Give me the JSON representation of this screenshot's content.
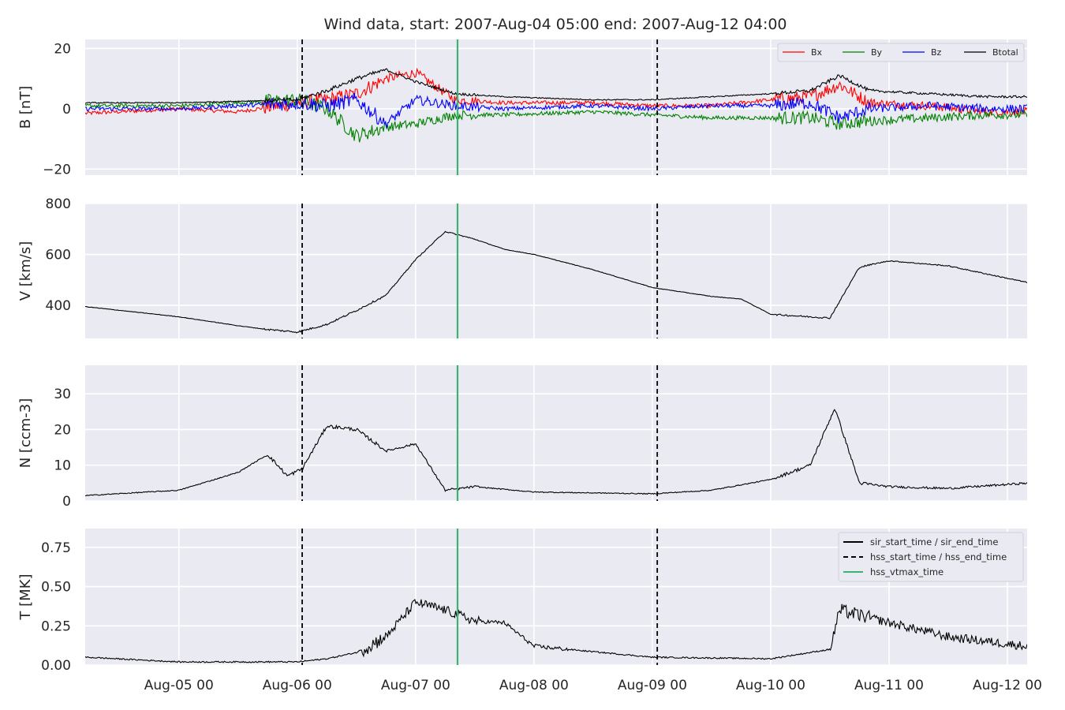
{
  "title": "Wind data, start: 2007-Aug-04 05:00  end: 2007-Aug-12 04:00",
  "colors": {
    "background": "#eaeaf2",
    "grid": "#ffffff",
    "bx": "#ff0000",
    "by": "#008000",
    "bz": "#0000ff",
    "btotal": "#000000",
    "vtmax": "#3cb371"
  },
  "x_tick_labels": [
    "Aug-05 00",
    "Aug-06 00",
    "Aug-07 00",
    "Aug-08 00",
    "Aug-09 00",
    "Aug-10 00",
    "Aug-11 00",
    "Aug-12 00"
  ],
  "markers": {
    "hss_start_time": "2007-08-06 01:00",
    "hss_end_time": "2007-08-09 01:00",
    "hss_vtmax_time": "2007-08-07 08:30"
  },
  "legend_lines": {
    "sir": "sir_start_time / sir_end_time",
    "hss": "hss_start_time / hss_end_time",
    "vtmax": "hss_vtmax_time"
  },
  "chart_data": [
    {
      "type": "line",
      "ylabel": "B [nT]",
      "ylim": [
        -22,
        23
      ],
      "yticks": [
        -20,
        0,
        20
      ],
      "ytick_labels": [
        "−20",
        "0",
        "20"
      ],
      "grid": true,
      "legend": "top-right",
      "x": [
        "2007-08-04 05:00",
        "2007-08-05 00:00",
        "2007-08-05 12:00",
        "2007-08-06 00:00",
        "2007-08-06 06:00",
        "2007-08-06 12:00",
        "2007-08-06 18:00",
        "2007-08-07 00:00",
        "2007-08-07 08:00",
        "2007-08-07 18:00",
        "2007-08-08 12:00",
        "2007-08-09 00:00",
        "2007-08-09 12:00",
        "2007-08-10 00:00",
        "2007-08-10 08:00",
        "2007-08-10 14:00",
        "2007-08-10 20:00",
        "2007-08-11 08:00",
        "2007-08-11 20:00",
        "2007-08-12 04:00"
      ],
      "series": [
        {
          "name": "Bx",
          "color": "#ff0000",
          "values": [
            -1.5,
            0,
            -1,
            2,
            3,
            5,
            10,
            12,
            3,
            2,
            2,
            1,
            1,
            3,
            4,
            8,
            2,
            1,
            -1,
            -1
          ]
        },
        {
          "name": "By",
          "color": "#008000",
          "values": [
            1,
            1,
            2,
            3,
            0,
            -9,
            -6,
            -5,
            -2,
            -2,
            -1,
            -2,
            -3,
            -3,
            -3,
            -5,
            -4,
            -3,
            -2,
            -2
          ]
        },
        {
          "name": "Bz",
          "color": "#0000ff",
          "values": [
            0,
            0,
            1,
            2,
            1,
            3,
            -5,
            3,
            1,
            0,
            1,
            0,
            1,
            1,
            2,
            -3,
            0,
            1,
            0,
            0
          ]
        },
        {
          "name": "Btotal",
          "color": "#000000",
          "values": [
            2,
            2,
            2.5,
            3,
            6,
            10,
            13,
            9,
            5,
            4,
            3,
            3,
            4,
            5,
            6,
            11,
            6,
            5,
            4,
            4
          ]
        }
      ]
    },
    {
      "type": "line",
      "ylabel": "V [km/s]",
      "ylim": [
        270,
        800
      ],
      "yticks": [
        400,
        600,
        800
      ],
      "ytick_labels": [
        "400",
        "600",
        "800"
      ],
      "grid": true,
      "x": [
        "2007-08-04 05:00",
        "2007-08-05 00:00",
        "2007-08-05 12:00",
        "2007-08-05 18:00",
        "2007-08-06 00:00",
        "2007-08-06 06:00",
        "2007-08-06 12:00",
        "2007-08-06 18:00",
        "2007-08-07 00:00",
        "2007-08-07 06:00",
        "2007-08-07 12:00",
        "2007-08-07 18:00",
        "2007-08-08 00:00",
        "2007-08-08 12:00",
        "2007-08-09 00:00",
        "2007-08-09 12:00",
        "2007-08-09 18:00",
        "2007-08-10 00:00",
        "2007-08-10 12:00",
        "2007-08-10 18:00",
        "2007-08-11 00:00",
        "2007-08-11 12:00",
        "2007-08-12 04:00"
      ],
      "series": [
        {
          "name": "",
          "color": "#000000",
          "values": [
            395,
            355,
            320,
            305,
            295,
            325,
            380,
            440,
            580,
            690,
            660,
            620,
            600,
            540,
            470,
            435,
            425,
            365,
            350,
            550,
            575,
            555,
            490
          ]
        }
      ]
    },
    {
      "type": "line",
      "ylabel": "N [ccm-3]",
      "ylim": [
        0,
        38
      ],
      "yticks": [
        0,
        10,
        20,
        30
      ],
      "ytick_labels": [
        "0",
        "10",
        "20",
        "30"
      ],
      "grid": true,
      "x": [
        "2007-08-04 05:00",
        "2007-08-05 00:00",
        "2007-08-05 12:00",
        "2007-08-05 18:00",
        "2007-08-05 22:00",
        "2007-08-06 01:00",
        "2007-08-06 06:00",
        "2007-08-06 12:00",
        "2007-08-06 18:00",
        "2007-08-07 00:00",
        "2007-08-07 06:00",
        "2007-08-07 12:00",
        "2007-08-08 00:00",
        "2007-08-09 00:00",
        "2007-08-09 12:00",
        "2007-08-10 00:00",
        "2007-08-10 08:00",
        "2007-08-10 13:00",
        "2007-08-10 18:00",
        "2007-08-11 00:00",
        "2007-08-11 12:00",
        "2007-08-12 04:00"
      ],
      "series": [
        {
          "name": "",
          "color": "#000000",
          "values": [
            1.5,
            3,
            8,
            13,
            7,
            9,
            21,
            20,
            14,
            16,
            3,
            4,
            2.5,
            2,
            3,
            6,
            10,
            26,
            5,
            4,
            3.5,
            5
          ]
        }
      ]
    },
    {
      "type": "line",
      "ylabel": "T [MK]",
      "ylim": [
        0,
        0.87
      ],
      "yticks": [
        0,
        0.25,
        0.5,
        0.75
      ],
      "ytick_labels": [
        "0.00",
        "0.25",
        "0.50",
        "0.75"
      ],
      "grid": true,
      "legend": "top-right",
      "x": [
        "2007-08-04 05:00",
        "2007-08-05 00:00",
        "2007-08-05 12:00",
        "2007-08-06 00:00",
        "2007-08-06 06:00",
        "2007-08-06 12:00",
        "2007-08-06 18:00",
        "2007-08-07 00:00",
        "2007-08-07 06:00",
        "2007-08-07 12:00",
        "2007-08-07 18:00",
        "2007-08-08 00:00",
        "2007-08-09 00:00",
        "2007-08-10 00:00",
        "2007-08-10 12:00",
        "2007-08-10 14:00",
        "2007-08-11 00:00",
        "2007-08-11 12:00",
        "2007-08-12 04:00"
      ],
      "series": [
        {
          "name": "",
          "color": "#000000",
          "values": [
            0.05,
            0.02,
            0.02,
            0.02,
            0.04,
            0.08,
            0.18,
            0.4,
            0.35,
            0.28,
            0.27,
            0.12,
            0.05,
            0.04,
            0.1,
            0.35,
            0.27,
            0.18,
            0.12
          ]
        }
      ]
    }
  ]
}
